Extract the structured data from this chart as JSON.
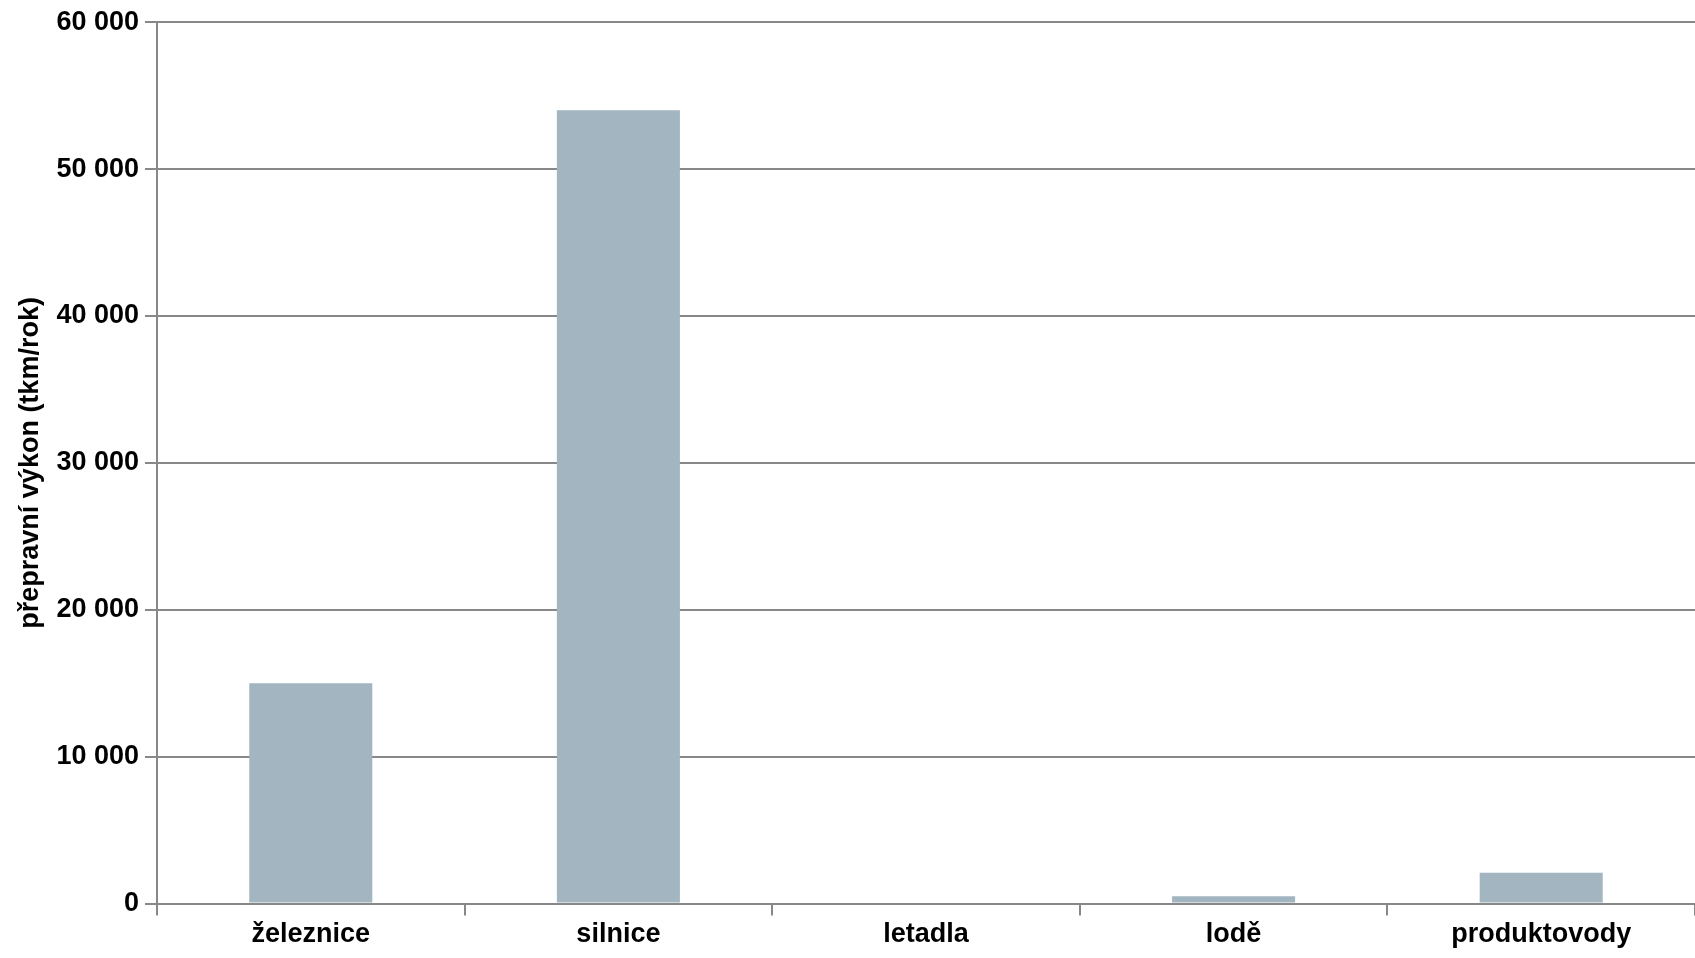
{
  "chart_data": {
    "type": "bar",
    "ylabel": "přepravní výkon (tkm/rok)",
    "categories": [
      "železnice",
      "silnice",
      "letadla",
      "lodě",
      "produktovody"
    ],
    "values": [
      15000,
      54000,
      0,
      500,
      2100
    ],
    "color": "#a2b5c0",
    "ylim": [
      0,
      60000
    ],
    "yticks": [
      {
        "value": 0,
        "label": "0"
      },
      {
        "value": 10000,
        "label": "10 000"
      },
      {
        "value": 20000,
        "label": "20 000"
      },
      {
        "value": 30000,
        "label": "30 000"
      },
      {
        "value": 40000,
        "label": "40 000"
      },
      {
        "value": 50000,
        "label": "50 000"
      },
      {
        "value": 60000,
        "label": "60 000"
      }
    ],
    "grid": "y",
    "legend": false
  }
}
